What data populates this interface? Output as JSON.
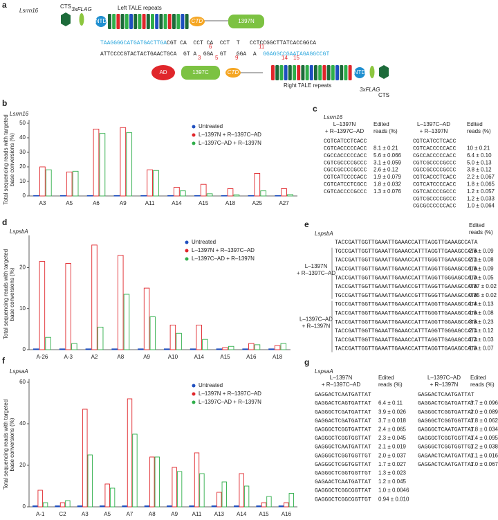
{
  "diagram": {
    "panel": "a",
    "gene": "Lsrrn16",
    "labels": {
      "cts_top": "CTS",
      "flag_top": "3xFLAG",
      "ntd_top": "NTD",
      "left_repeats": "Left TALE repeats",
      "ctd_top": "CTD",
      "n1397": "1397N",
      "ad": "AD",
      "c1397": "1397C",
      "ctd_bottom": "CTD",
      "ntd_bottom": "NTD",
      "right_repeats": "Right TALE repeats",
      "flag_bottom": "3xFLAG",
      "cts_bottom": "CTS"
    },
    "top_strand": {
      "binding": "TAAGGGGCATGATGACTTGA",
      "spacer": "CGT CA  CCT CA  CCT  T   CCTCCGGCTTATCACCGGCA",
      "positions": [
        "6",
        "11"
      ]
    },
    "bottom_strand": {
      "spacer": "ATTCCCCGTACTACTGAACTGCA  GT A  GGA  GT   GGA  A  ",
      "binding": "GGAGGCCGAATAGAGGCCGT",
      "positions": [
        "3",
        "5",
        "9",
        "14",
        "15"
      ]
    }
  },
  "chart_data": [
    {
      "type": "bar",
      "panel": "b",
      "title": "Lsrrn16",
      "y_label": [
        "Total sequencing reads with targeted",
        "base conversions (%)"
      ],
      "categories": [
        "A3",
        "A5",
        "A6",
        "A9",
        "A11",
        "A14",
        "A15",
        "A18",
        "A25",
        "A27"
      ],
      "series": [
        {
          "name": "Untreated",
          "color": "#1f4fbf",
          "values": [
            0.3,
            0.3,
            0.3,
            0.3,
            0.3,
            0.3,
            0.3,
            0.3,
            0.3,
            0.3
          ]
        },
        {
          "name": "L–1397N + R–1397C–AD",
          "color": "#e0262b",
          "values": [
            20,
            16.5,
            46,
            47,
            18,
            6,
            8,
            5,
            15.5,
            5
          ]
        },
        {
          "name": "L–1397C–AD + R–1397N",
          "color": "#2fae4a",
          "values": [
            18,
            17,
            43,
            43.5,
            17.5,
            3.5,
            1.5,
            0.8,
            3.5,
            1
          ]
        }
      ],
      "ylim": [
        0,
        50
      ],
      "yticks": [
        0,
        10,
        20,
        30,
        40,
        50
      ],
      "legend": "upper right"
    },
    {
      "type": "bar",
      "panel": "d",
      "title": "LspsbA",
      "y_label": [
        "Total sequencing reads with targeted",
        "base conversions (%)"
      ],
      "categories": [
        "A-26",
        "A-3",
        "A2",
        "A8",
        "A9",
        "A10",
        "A14",
        "A15",
        "A16",
        "A18"
      ],
      "series": [
        {
          "name": "Untreated",
          "color": "#1f4fbf",
          "values": [
            0.2,
            0.2,
            0.2,
            0.2,
            0.2,
            0.2,
            0.2,
            0.2,
            0.2,
            0.2
          ]
        },
        {
          "name": "L–1397N + R–1397C–AD",
          "color": "#e0262b",
          "values": [
            21.5,
            21,
            25.5,
            23,
            15,
            6,
            6,
            0.5,
            1.5,
            1
          ]
        },
        {
          "name": "L–1397C–AD + R–1397N",
          "color": "#2fae4a",
          "values": [
            3,
            1.5,
            5.5,
            13.5,
            8,
            4,
            2.5,
            0.8,
            1.2,
            1.5
          ]
        }
      ],
      "ylim": [
        0,
        27
      ],
      "yticks": [
        0,
        10,
        20
      ],
      "legend": "upper right"
    },
    {
      "type": "bar",
      "panel": "f",
      "title": "LspsaA",
      "y_label": [
        "Total sequencing reads with targeted",
        "base conversions (%)"
      ],
      "categories": [
        "A-1",
        "C2",
        "A3",
        "A5",
        "A7",
        "A8",
        "A9",
        "A11",
        "A13",
        "A14",
        "A15",
        "A16"
      ],
      "series": [
        {
          "name": "Untreated",
          "color": "#1f4fbf",
          "values": [
            0.5,
            0.5,
            0.5,
            0.5,
            0.5,
            0.5,
            0.5,
            0.5,
            0.5,
            0.5,
            0.5,
            0.5
          ]
        },
        {
          "name": "L–1397N + R–1397C–AD",
          "color": "#e0262b",
          "values": [
            8,
            2,
            47,
            11,
            52,
            24,
            19,
            26,
            7,
            16,
            2,
            2
          ]
        },
        {
          "name": "L–1397C–AD + R–1397N",
          "color": "#2fae4a",
          "values": [
            2,
            3,
            25,
            9,
            35,
            24,
            17,
            16,
            12,
            10,
            5,
            6.5
          ]
        }
      ],
      "ylim": [
        0,
        60
      ],
      "yticks": [
        0,
        20,
        40,
        60
      ],
      "legend": "upper right"
    }
  ],
  "tables": [
    {
      "panel": "c",
      "title": "Lsrrn16",
      "groups": [
        {
          "label": [
            "L–1397N",
            "+ R–1397C–AD"
          ],
          "value_header": [
            "Edited",
            "reads (%)"
          ],
          "reference": "CGTCATCCTCACC",
          "rows": [
            [
              "CGTCACCCCCACC",
              "8.1 ± 0.21"
            ],
            [
              "CGCCACCCCCACC",
              "5.6 ± 0.066"
            ],
            [
              "CGTCGCCCCGCCC",
              "3.1 ± 0.059"
            ],
            [
              "CGCCGCCCCGCCC",
              "2.6 ± 0.12"
            ],
            [
              "CGTCATCCCCACC",
              "1.9 ± 0.079"
            ],
            [
              "CGTCATCCTCGCC",
              "1.8 ± 0.032"
            ],
            [
              "CGTCACCCCGCCC",
              "1.3 ± 0.076"
            ]
          ]
        },
        {
          "label": [
            "L–1397C–AD",
            "+ R–1397N"
          ],
          "value_header": [
            "Edited",
            "reads (%)"
          ],
          "reference": "CGTCATCCTCACC",
          "rows": [
            [
              "CGTCACCCCCACC",
              "10 ± 0.21"
            ],
            [
              "CGCCACCCCCACC",
              "6.4 ± 0.10"
            ],
            [
              "CGTCGCCCCGCCC",
              "5.0 ± 0.13"
            ],
            [
              "CGCCGCCCCGCCC",
              "3.8 ± 0.12"
            ],
            [
              "CGTCACCCTCACC",
              "2.2 ± 0.067"
            ],
            [
              "CGTCATCCCCACC",
              "1.8 ± 0.065"
            ],
            [
              "CGTCACCCCGCCC",
              "1.2 ± 0.057"
            ],
            [
              "CGTCGCCCCGCCC",
              "1.2 ± 0.033"
            ],
            [
              "CGCGCCCCCCACC",
              "1.0 ± 0.064"
            ]
          ]
        }
      ]
    },
    {
      "panel": "e",
      "title": "LspsbA",
      "value_header": [
        "Edited",
        "reads (%)"
      ],
      "reference": "TACCGATTGGTTGAAATTGAAACCATTTAGGTTGAAAGCCATA",
      "groups": [
        {
          "label": [
            "L–1397N",
            "+ R–1397C–AD"
          ],
          "rows": [
            [
              "TGCCGATTGGTTGAAATTGAAACCATTTAGGTTGAAAGCCATA",
              "2.6 ± 0.09"
            ],
            [
              "TACCGATTGGTTGAAATTGAAACCATTTGGGTTGAAAGCCATA",
              "2.1 ± 0.08"
            ],
            [
              "TACCGATTGGTTGAAATTGAAACCATTTAGGTTGGAAGCCATA",
              "1.6 ± 0.09"
            ],
            [
              "TACCGATTGGTTGAAATTGAAACCATTTAGGTTGGGAGCCATA",
              "1.0 ± 0.05"
            ],
            [
              "TACCGATTGGTTGAAATTGAAACCGTTTAGGTTGAAAGCCATA",
              "0.87 ± 0.02"
            ],
            [
              "TGCCGATTGGTTGAAATTGAAACCGTTTGGGTTGAAAGCCATA",
              "0.85 ± 0.02"
            ]
          ]
        },
        {
          "label": [
            "L–1397C–AD",
            "+ R–1397N"
          ],
          "rows": [
            [
              "TGCCGATTGGTTGAAATTGAAACCATTTAGGTTGAAAGCCATA",
              "1.4 ± 0.13"
            ],
            [
              "TACCGATTGGTTGAAATTGAAACCATTTGGGTTGAAAGCCATA",
              "1.6 ± 0.08"
            ],
            [
              "TACCGATTGGTTGAAATTGAAACCATTTAGGTTGGAAGCCATA",
              "3.8 ± 0.23"
            ],
            [
              "TACCGATTGGTTGAAATTGAAACCATTTAGGTTGGGAGCCATA",
              "2.1 ± 0.12"
            ],
            [
              "TACCGATTGGTTGAAATTGAAACCATTTAGGTTGAGAGCCATA",
              "1.2 ± 0.03"
            ],
            [
              "TACCGATTGGTTGAAATTGAAACCATTTAGGTTGAGAGCCATA",
              "1.0 ± 0.07"
            ]
          ]
        }
      ]
    },
    {
      "panel": "g",
      "title": "LspsaA",
      "groups": [
        {
          "label": [
            "L–1397N",
            "+ R–1397C–AD"
          ],
          "value_header": [
            "Edited",
            "reads (%)"
          ],
          "reference": "GAGGACTCAATGATTAT",
          "rows": [
            [
              "GAGGACTCAGTGATTAT",
              "6.4 ± 0.11"
            ],
            [
              "GAGGGCTCGATGATTAT",
              "3.9 ± 0.026"
            ],
            [
              "GAGGACTCGATGATTAT",
              "3.7 ± 0.018"
            ],
            [
              "GAGGGCTCGGTGATTAT",
              "2.4 ± 0.065"
            ],
            [
              "GAGGGCTCGGTGGTTAT",
              "2.3 ± 0.045"
            ],
            [
              "GAGGGCTCAATGATTAT",
              "2.1 ± 0.019"
            ],
            [
              "GAGGGCTCGGTGGTTGT",
              "2.0 ± 0.037"
            ],
            [
              "GAGGGCTCGGTGGTTAT",
              "1.7 ± 0.027"
            ],
            [
              "GAGGGCTCGGTGGTTGT",
              "1.3 ± 0.023"
            ],
            [
              "GAGAACTCAATGATTAT",
              "1.2 ± 0.045"
            ],
            [
              "GAGGGCTCGGCGGTTAT",
              "1.0 ± 0.0046"
            ],
            [
              "GAGGGCTCGGCGGTTGT",
              "0.94 ± 0.010"
            ]
          ]
        },
        {
          "label": [
            "L–1397C–AD",
            "+ R–1397N"
          ],
          "value_header": [
            "Edited",
            "reads (%)"
          ],
          "reference": "GAGGACTCAATGATTAT",
          "rows": [
            [
              "GAGGACTCGATGATTAT",
              "3.7 ± 0.096"
            ],
            [
              "GAGGGCTCGGTGATTAT",
              "2.0 ± 0.089"
            ],
            [
              "GAGGGCTCGGTGGTTAT",
              "1.8 ± 0.062"
            ],
            [
              "GAGGGCTCAATGATTAT",
              "1.8 ± 0.034"
            ],
            [
              "GAGGGCTCGGTGGTTAT",
              "1.4 ± 0.095"
            ],
            [
              "GAGGGCTCGGTGGTTGT",
              "1.2 ± 0.038"
            ],
            [
              "GAGAACTCAATGATTAT",
              "1.1 ± 0.016"
            ],
            [
              "GAGGACTCAATGATTAT",
              "1.0 ± 0.067"
            ]
          ]
        }
      ]
    }
  ]
}
